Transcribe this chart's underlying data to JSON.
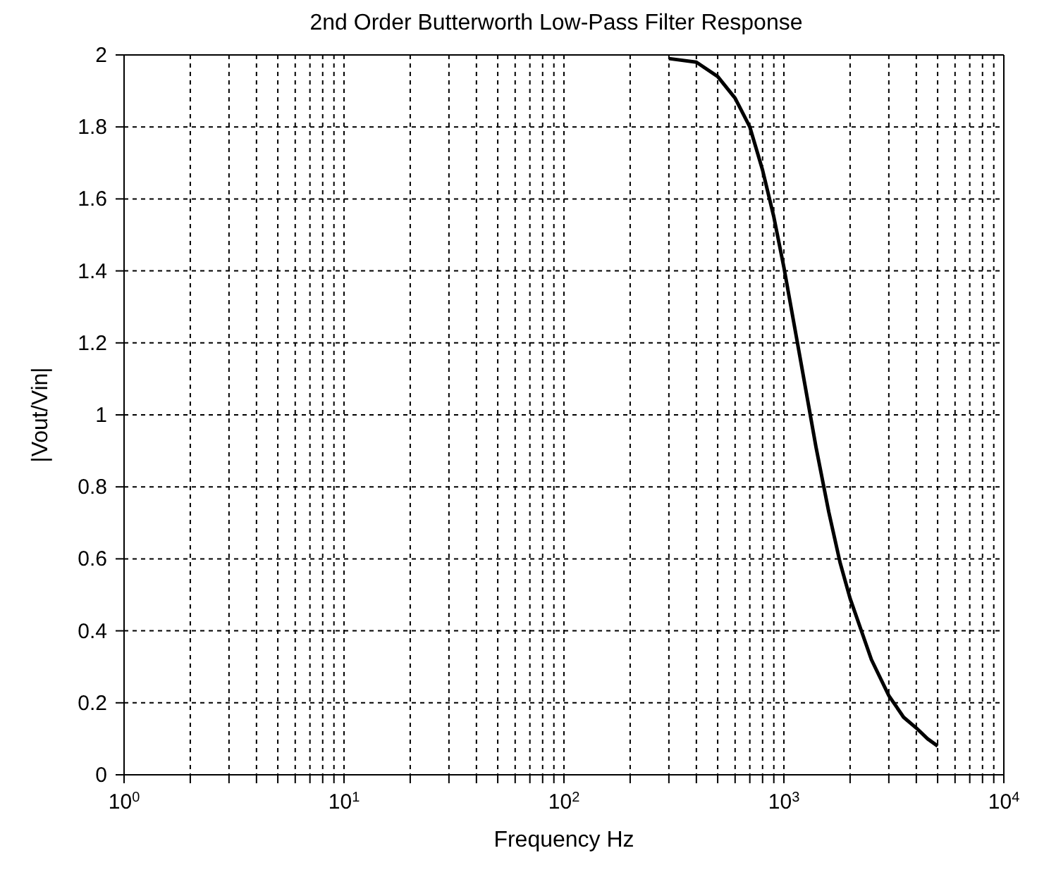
{
  "chart_data": {
    "type": "line",
    "title": "2nd Order Butterworth Low-Pass Filter Response",
    "xlabel": "Frequency Hz",
    "ylabel": "|Vout/Vin|",
    "log": "x",
    "grid": true,
    "marker": "none",
    "line_style": "solid",
    "xlim": [
      1,
      10000
    ],
    "xticks": [
      {
        "value": 1,
        "label": "10$^{0}$"
      },
      {
        "value": 2,
        "label": null
      },
      {
        "value": 3,
        "label": null
      },
      {
        "value": 4,
        "label": null
      },
      {
        "value": 5,
        "label": null
      },
      {
        "value": 6,
        "label": null
      },
      {
        "value": 7,
        "label": null
      },
      {
        "value": 8,
        "label": null
      },
      {
        "value": 9,
        "label": null
      },
      {
        "value": 10,
        "label": "10$^{1}$"
      },
      {
        "value": 20,
        "label": null
      },
      {
        "value": 30,
        "label": null
      },
      {
        "value": 40,
        "label": null
      },
      {
        "value": 50,
        "label": null
      },
      {
        "value": 60,
        "label": null
      },
      {
        "value": 70,
        "label": null
      },
      {
        "value": 80,
        "label": null
      },
      {
        "value": 90,
        "label": null
      },
      {
        "value": 100,
        "label": "10$^{2}$"
      },
      {
        "value": 200,
        "label": null
      },
      {
        "value": 300,
        "label": null
      },
      {
        "value": 400,
        "label": null
      },
      {
        "value": 500,
        "label": null
      },
      {
        "value": 600,
        "label": null
      },
      {
        "value": 700,
        "label": null
      },
      {
        "value": 800,
        "label": null
      },
      {
        "value": 900,
        "label": null
      },
      {
        "value": 1000,
        "label": "10$^{3}$"
      },
      {
        "value": 2000,
        "label": null
      },
      {
        "value": 3000,
        "label": null
      },
      {
        "value": 4000,
        "label": null
      },
      {
        "value": 5000,
        "label": null
      },
      {
        "value": 6000,
        "label": null
      },
      {
        "value": 7000,
        "label": null
      },
      {
        "value": 8000,
        "label": null
      },
      {
        "value": 9000,
        "label": null
      },
      {
        "value": 10000,
        "label": "10$^{4}$"
      }
    ],
    "ylim": [
      0,
      2
    ],
    "yticks": [
      0,
      0.2,
      0.4,
      0.6,
      0.8,
      1,
      1.2,
      1.4,
      1.6,
      1.8,
      2
    ],
    "series": [
      {
        "color": "#000000",
        "x": [
          300,
          400,
          500,
          600,
          700,
          800,
          900,
          1000,
          1200,
          1400,
          1600,
          1800,
          2000,
          2500,
          3000,
          3500,
          4000,
          4500,
          5000
        ],
        "values": [
          1.99,
          1.98,
          1.94,
          1.88,
          1.8,
          1.68,
          1.55,
          1.41,
          1.14,
          0.91,
          0.73,
          0.59,
          0.49,
          0.32,
          0.22,
          0.16,
          0.13,
          0.1,
          0.08
        ]
      }
    ]
  }
}
